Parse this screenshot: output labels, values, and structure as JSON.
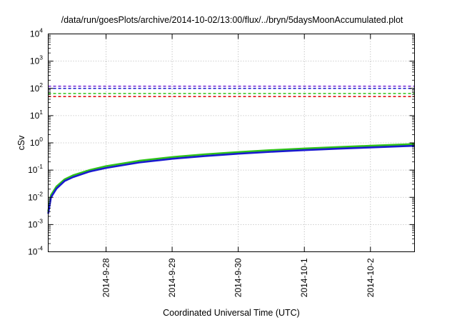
{
  "chart_data": {
    "type": "line",
    "title": "/data/run/goesPlots/archive/2014-10-02/13:00/flux/../bryn/5daysMoonAccumulated.plot",
    "xlabel": "Coordinated Universal Time (UTC)",
    "ylabel": "cSv",
    "x_type": "date",
    "xlim": [
      "2014-09-27 03:00",
      "2014-10-02 16:00"
    ],
    "x_ticks": [
      "2014-9-28",
      "2014-9-29",
      "2014-9-30",
      "2014-10-1",
      "2014-10-2"
    ],
    "y_scale": "log",
    "ylim": [
      0.0001,
      10000
    ],
    "y_ticks": [
      {
        "base": "10",
        "exp": "-4",
        "value": 0.0001
      },
      {
        "base": "10",
        "exp": "-3",
        "value": 0.001
      },
      {
        "base": "10",
        "exp": "-2",
        "value": 0.01
      },
      {
        "base": "10",
        "exp": "-1",
        "value": 0.1
      },
      {
        "base": "10",
        "exp": "0",
        "value": 1
      },
      {
        "base": "10",
        "exp": "1",
        "value": 10
      },
      {
        "base": "10",
        "exp": "2",
        "value": 100
      },
      {
        "base": "10",
        "exp": "3",
        "value": 1000
      },
      {
        "base": "10",
        "exp": "4",
        "value": 10000
      }
    ],
    "grid": true,
    "legend": "none",
    "thresholds": [
      {
        "color": "#7b2fd6",
        "value": 120
      },
      {
        "color": "#1a1ad0",
        "value": 100
      },
      {
        "color": "#2fc21a",
        "value": 65
      },
      {
        "color": "#e01010",
        "value": 50
      }
    ],
    "series": [
      {
        "color": "#2fc21a",
        "x": [
          "2014-09-27 03:00",
          "2014-09-27 04:00",
          "2014-09-27 06:00",
          "2014-09-27 09:00",
          "2014-09-27 12:00",
          "2014-09-27 18:00",
          "2014-09-28 00:00",
          "2014-09-28 12:00",
          "2014-09-29 00:00",
          "2014-09-29 12:00",
          "2014-09-30 00:00",
          "2014-09-30 12:00",
          "2014-10-01 00:00",
          "2014-10-01 12:00",
          "2014-10-02 00:00",
          "2014-10-02 16:00"
        ],
        "y": [
          0.003,
          0.012,
          0.025,
          0.046,
          0.064,
          0.1,
          0.14,
          0.22,
          0.3,
          0.38,
          0.46,
          0.54,
          0.62,
          0.7,
          0.78,
          0.9
        ]
      },
      {
        "color": "#1a1ad0",
        "x": [
          "2014-09-27 03:00",
          "2014-09-27 04:00",
          "2014-09-27 06:00",
          "2014-09-27 09:00",
          "2014-09-27 12:00",
          "2014-09-27 18:00",
          "2014-09-28 00:00",
          "2014-09-28 12:00",
          "2014-09-29 00:00",
          "2014-09-29 12:00",
          "2014-09-30 00:00",
          "2014-09-30 12:00",
          "2014-10-01 00:00",
          "2014-10-01 12:00",
          "2014-10-02 00:00",
          "2014-10-02 16:00"
        ],
        "y": [
          0.0025,
          0.01,
          0.021,
          0.04,
          0.055,
          0.088,
          0.12,
          0.19,
          0.26,
          0.33,
          0.4,
          0.47,
          0.54,
          0.61,
          0.68,
          0.78
        ]
      }
    ]
  }
}
